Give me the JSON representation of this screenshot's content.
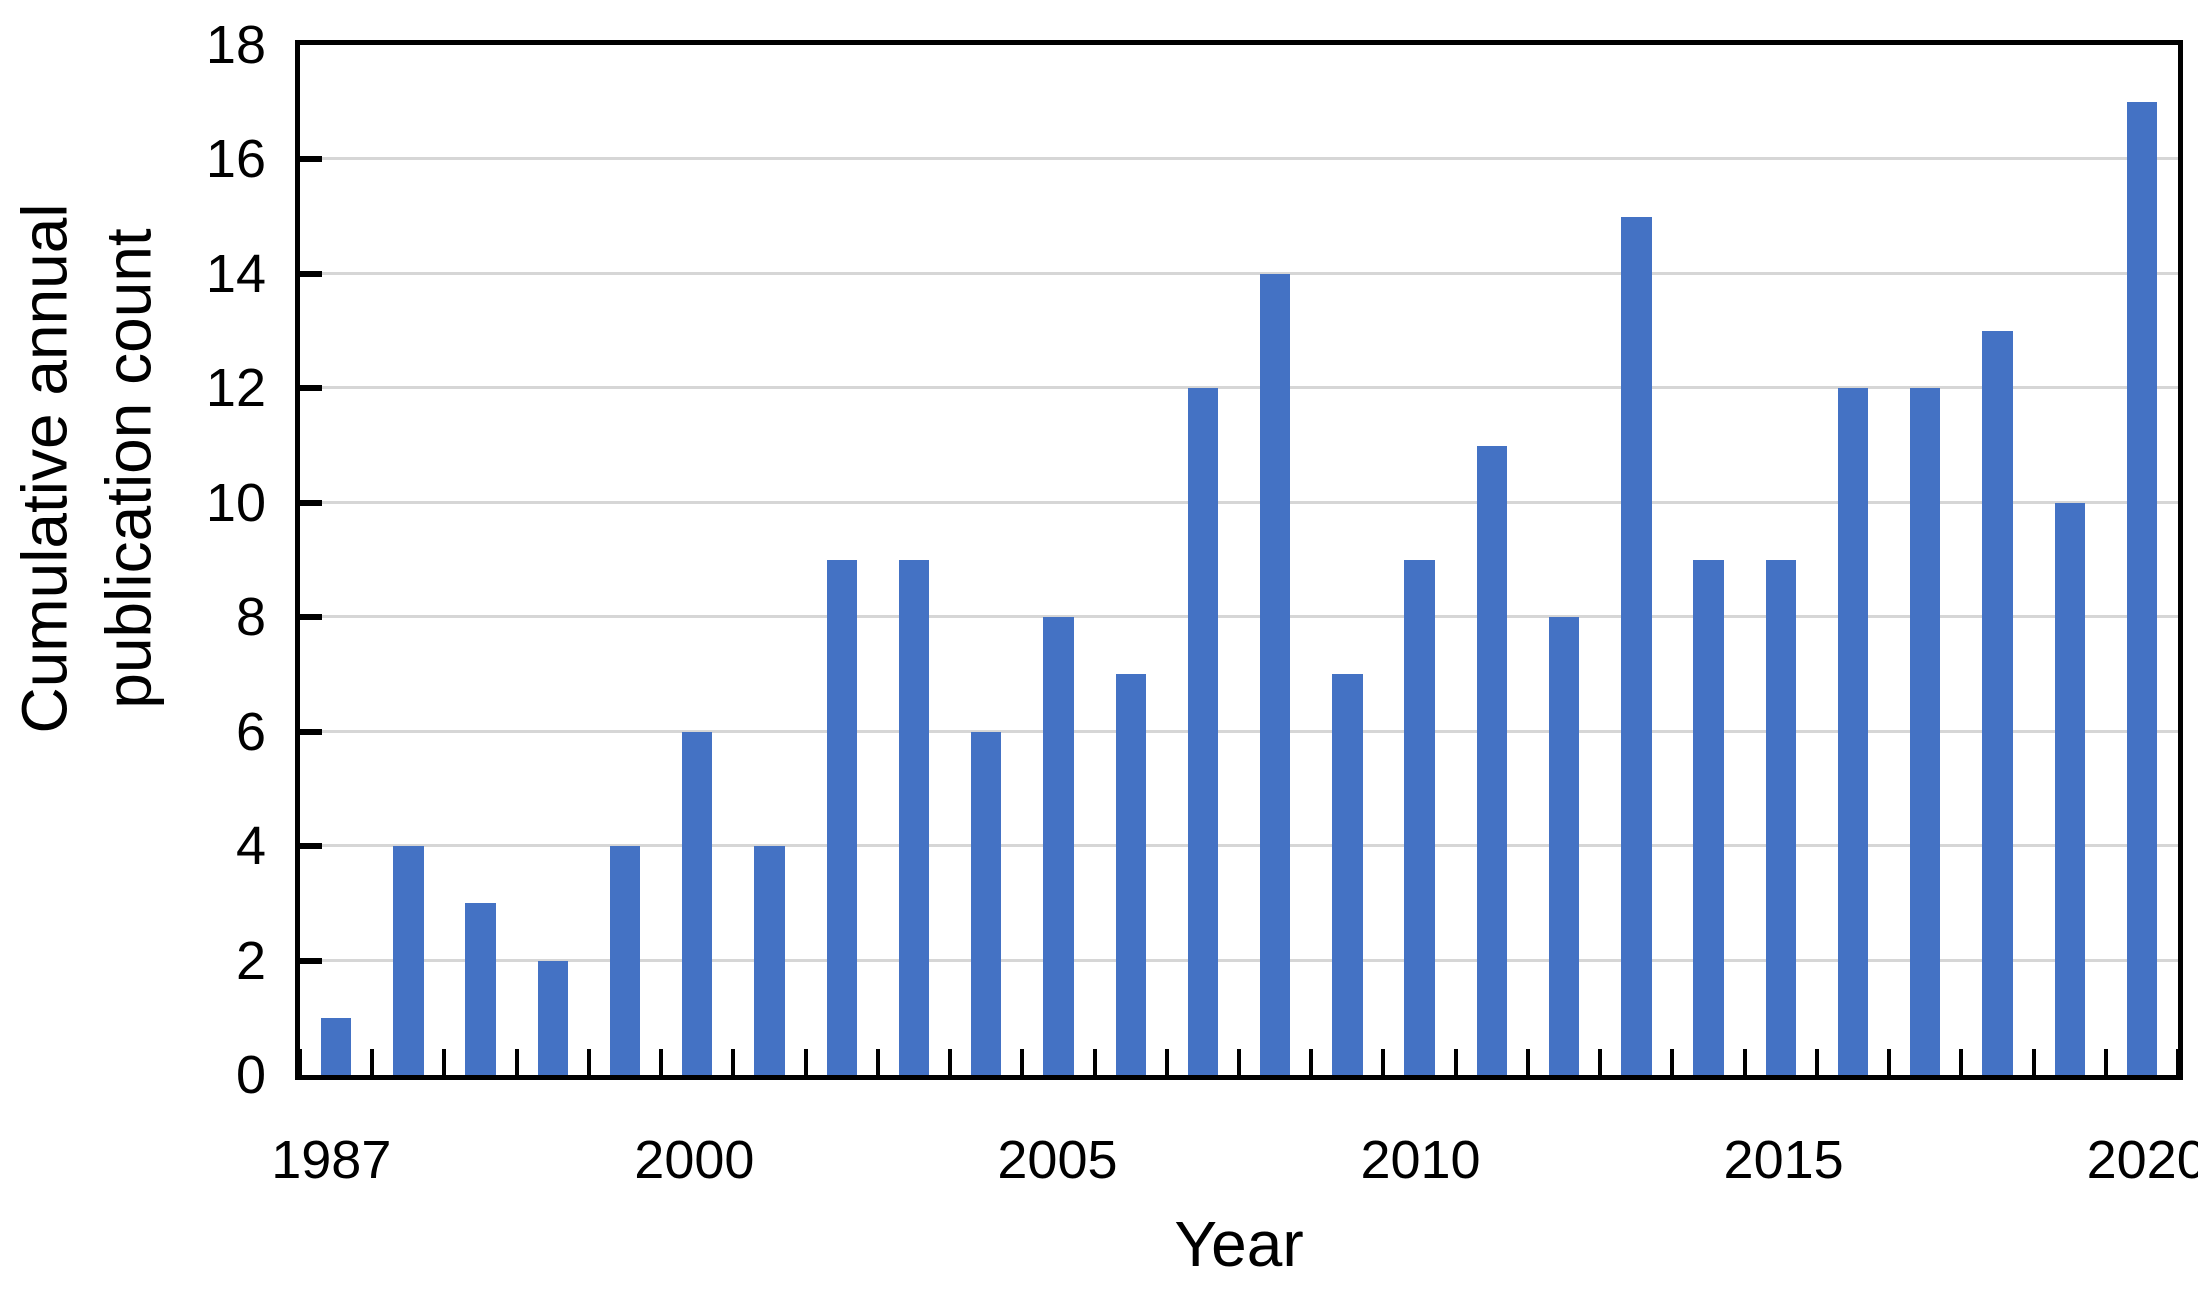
{
  "chart_data": {
    "type": "bar",
    "title": "",
    "xlabel": "Year",
    "ylabel_lines": [
      "Cumulative annual",
      "publication count"
    ],
    "ylim": [
      0,
      18
    ],
    "yticks": [
      0,
      2,
      4,
      6,
      8,
      10,
      12,
      14,
      16,
      18
    ],
    "n_bars": 26,
    "values": [
      1,
      4,
      3,
      2,
      4,
      6,
      4,
      9,
      9,
      6,
      8,
      7,
      12,
      14,
      7,
      9,
      11,
      8,
      15,
      9,
      9,
      12,
      12,
      13,
      10,
      17
    ],
    "x_tick_labels": [
      {
        "index": 0,
        "label": "1987"
      },
      {
        "index": 5,
        "label": "2000"
      },
      {
        "index": 10,
        "label": "2005"
      },
      {
        "index": 15,
        "label": "2010"
      },
      {
        "index": 20,
        "label": "2015"
      },
      {
        "index": 25,
        "label": "2020"
      }
    ],
    "grid": true,
    "legend": false,
    "colors": {
      "bar": "#4472C4",
      "gridline": "#d6d6d6",
      "axis": "#000000",
      "text": "#000000",
      "background": "#ffffff"
    }
  }
}
